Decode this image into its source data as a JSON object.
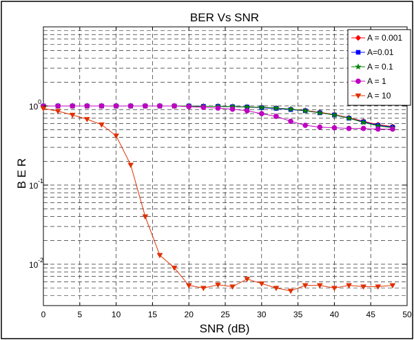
{
  "chart_data": {
    "type": "line",
    "title": "BER Vs SNR",
    "xlabel": "SNR (dB)",
    "ylabel": "B E R",
    "xlim": [
      0,
      50
    ],
    "ylim": [
      0.003,
      10
    ],
    "yscale": "log",
    "grid": true,
    "grid_style": "dashed",
    "legend_position": "top-right",
    "x_ticks": [
      "0",
      "5",
      "10",
      "15",
      "20",
      "25",
      "30",
      "35",
      "40",
      "45",
      "50"
    ],
    "y_ticks": [
      {
        "base": "10",
        "exp": "-2",
        "value": 0.01
      },
      {
        "base": "10",
        "exp": "-1",
        "value": 0.1
      },
      {
        "base": "10",
        "exp": "0",
        "value": 1
      }
    ],
    "x": [
      0,
      2,
      4,
      6,
      8,
      10,
      12,
      14,
      16,
      18,
      20,
      22,
      24,
      26,
      28,
      30,
      32,
      34,
      36,
      38,
      40,
      42,
      44,
      46,
      48
    ],
    "series": [
      {
        "name": "A = 0.001",
        "color": "#ff0000",
        "marker": "diamond",
        "values": [
          1,
          1,
          1,
          1,
          1,
          1,
          1,
          1,
          1,
          1,
          1,
          0.99,
          0.99,
          0.98,
          0.97,
          0.96,
          0.94,
          0.91,
          0.88,
          0.83,
          0.78,
          0.71,
          0.64,
          0.58,
          0.55
        ]
      },
      {
        "name": "A=0.01",
        "color": "#0000ff",
        "marker": "square",
        "values": [
          1,
          1,
          1,
          1,
          1,
          1,
          1,
          1,
          1,
          1,
          1,
          0.99,
          0.99,
          0.98,
          0.97,
          0.95,
          0.93,
          0.9,
          0.87,
          0.82,
          0.77,
          0.7,
          0.63,
          0.57,
          0.54
        ]
      },
      {
        "name": "A = 0.1",
        "color": "#008000",
        "marker": "star",
        "values": [
          1,
          1,
          1,
          1,
          1,
          1,
          1,
          1,
          1,
          1,
          1,
          0.99,
          0.99,
          0.98,
          0.97,
          0.96,
          0.94,
          0.91,
          0.87,
          0.82,
          0.77,
          0.7,
          0.62,
          0.56,
          0.53
        ]
      },
      {
        "name": "A = 1",
        "color": "#bf00bf",
        "marker": "circle",
        "values": [
          1,
          1,
          1,
          1,
          1,
          1,
          1,
          1,
          1,
          1,
          0.98,
          0.96,
          0.94,
          0.91,
          0.87,
          0.8,
          0.74,
          0.64,
          0.57,
          0.54,
          0.53,
          0.52,
          0.52,
          0.51,
          0.51
        ]
      },
      {
        "name": "A = 10",
        "color": "#e03000",
        "marker": "triangle-down",
        "values": [
          0.93,
          0.86,
          0.77,
          0.68,
          0.58,
          0.42,
          0.18,
          0.04,
          0.013,
          0.009,
          0.0054,
          0.005,
          0.0055,
          0.0052,
          0.0065,
          0.0057,
          0.005,
          0.0046,
          0.0054,
          0.0054,
          0.005,
          0.0054,
          0.0052,
          0.0052,
          0.0054
        ]
      }
    ]
  }
}
